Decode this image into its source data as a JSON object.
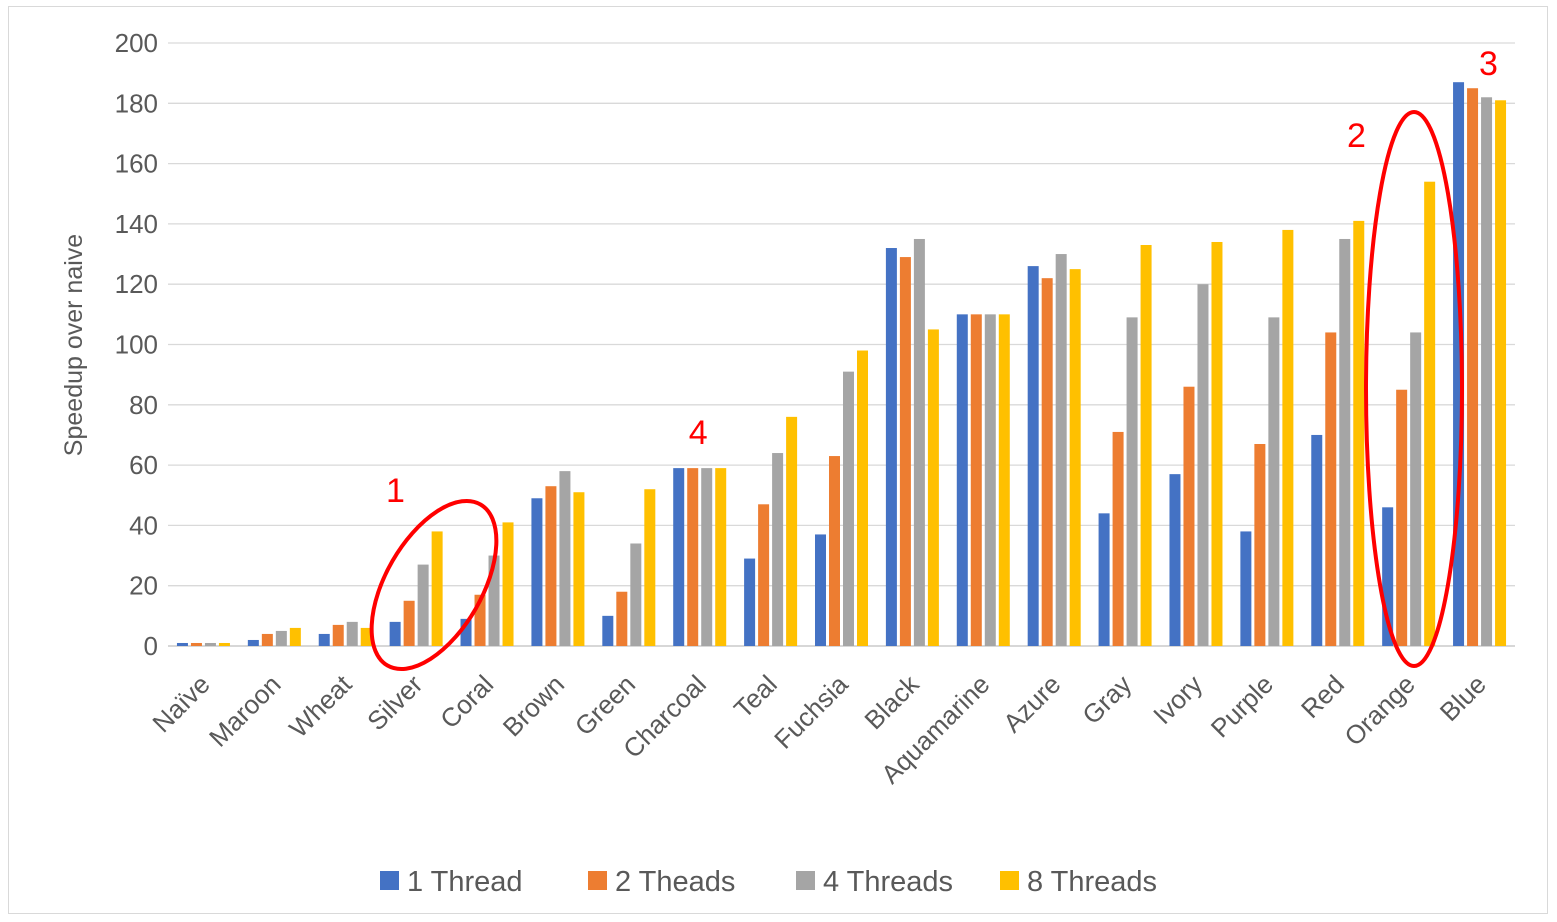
{
  "chart_data": {
    "type": "bar",
    "title": "",
    "xlabel": "",
    "ylabel": "Speedup over naive",
    "ylim": [
      0,
      200
    ],
    "yticks": [
      0,
      20,
      40,
      60,
      80,
      100,
      120,
      140,
      160,
      180,
      200
    ],
    "grid": true,
    "legend_position": "bottom",
    "categories": [
      "Naïve",
      "Maroon",
      "Wheat",
      "Silver",
      "Coral",
      "Brown",
      "Green",
      "Charcoal",
      "Teal",
      "Fuchsia",
      "Black",
      "Aquamarine",
      "Azure",
      "Gray",
      "Ivory",
      "Purple",
      "Red",
      "Orange",
      "Blue"
    ],
    "series": [
      {
        "name": "1 Thread",
        "color": "#4472c4",
        "values": [
          1,
          2,
          4,
          8,
          9,
          49,
          10,
          59,
          29,
          37,
          132,
          110,
          126,
          44,
          57,
          38,
          70,
          46,
          187
        ]
      },
      {
        "name": "2 Theads",
        "color": "#ed7d31",
        "values": [
          1,
          4,
          7,
          15,
          17,
          53,
          18,
          59,
          47,
          63,
          129,
          110,
          122,
          71,
          86,
          67,
          104,
          85,
          185
        ]
      },
      {
        "name": "4 Threads",
        "color": "#a5a5a5",
        "values": [
          1,
          5,
          8,
          27,
          30,
          58,
          34,
          59,
          64,
          91,
          135,
          110,
          130,
          109,
          120,
          109,
          135,
          104,
          182
        ]
      },
      {
        "name": "8 Threads",
        "color": "#ffc000",
        "values": [
          1,
          6,
          6,
          38,
          41,
          51,
          52,
          59,
          76,
          98,
          105,
          110,
          125,
          133,
          134,
          138,
          141,
          154,
          181
        ]
      }
    ],
    "annotations": [
      {
        "label": "1",
        "category": "Silver",
        "shape": "ellipse"
      },
      {
        "label": "2",
        "category": "Orange",
        "shape": "ellipse"
      },
      {
        "label": "3",
        "category": "Blue"
      },
      {
        "label": "4",
        "category": "Charcoal"
      }
    ]
  }
}
